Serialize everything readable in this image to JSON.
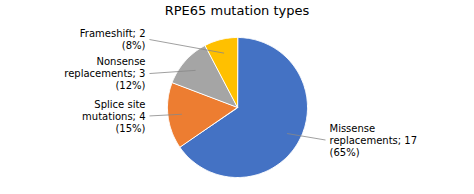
{
  "chart_data": {
    "type": "pie",
    "title": "RPE65 mutation types",
    "categories": [
      "Missense\nreplacements; 17\n(65%)",
      "Splice site\nmutations; 4\n(15%)",
      "Nonsense\nreplacements; 3\n(12%)",
      "Frameshift; 2\n(8%)"
    ],
    "values": [
      17,
      4,
      3,
      2
    ],
    "colors": [
      "#4472C4",
      "#ED7D31",
      "#A5A5A5",
      "#FFC000"
    ]
  }
}
